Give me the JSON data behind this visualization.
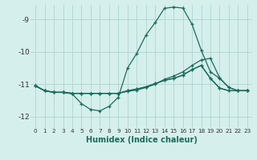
{
  "xlabel": "Humidex (Indice chaleur)",
  "bg_color": "#d5efed",
  "grid_color": "#aed4d0",
  "line_color": "#1a6b5a",
  "xlim": [
    -0.5,
    23.5
  ],
  "ylim": [
    -12.35,
    -8.55
  ],
  "yticks": [
    -12,
    -11,
    -10,
    -9
  ],
  "xticks": [
    0,
    1,
    2,
    3,
    4,
    5,
    6,
    7,
    8,
    9,
    10,
    11,
    12,
    13,
    14,
    15,
    16,
    17,
    18,
    19,
    20,
    21,
    22,
    23
  ],
  "line1_x": [
    0,
    1,
    2,
    3,
    4,
    5,
    6,
    7,
    8,
    9,
    10,
    11,
    12,
    13,
    14,
    15,
    16,
    17,
    18,
    19,
    20,
    21,
    22,
    23
  ],
  "line1_y": [
    -11.05,
    -11.2,
    -11.25,
    -11.25,
    -11.3,
    -11.6,
    -11.78,
    -11.82,
    -11.68,
    -11.4,
    -10.5,
    -10.05,
    -9.48,
    -9.1,
    -8.66,
    -8.62,
    -8.65,
    -9.15,
    -9.95,
    -10.62,
    -10.82,
    -11.1,
    -11.2,
    -11.2
  ],
  "line2_x": [
    0,
    1,
    2,
    3,
    4,
    5,
    6,
    7,
    8,
    9,
    10,
    11,
    12,
    13,
    14,
    15,
    16,
    17,
    18,
    19,
    20,
    21,
    22,
    23
  ],
  "line2_y": [
    -11.05,
    -11.2,
    -11.25,
    -11.25,
    -11.28,
    -11.28,
    -11.28,
    -11.28,
    -11.28,
    -11.28,
    -11.22,
    -11.18,
    -11.1,
    -11.0,
    -10.85,
    -10.75,
    -10.62,
    -10.42,
    -10.25,
    -10.2,
    -10.8,
    -11.1,
    -11.2,
    -11.2
  ],
  "line3_x": [
    0,
    1,
    2,
    3,
    4,
    5,
    6,
    7,
    8,
    9,
    10,
    11,
    12,
    13,
    14,
    15,
    16,
    17,
    18,
    19,
    20,
    21,
    22,
    23
  ],
  "line3_y": [
    -11.05,
    -11.2,
    -11.25,
    -11.25,
    -11.28,
    -11.28,
    -11.28,
    -11.28,
    -11.28,
    -11.28,
    -11.2,
    -11.15,
    -11.08,
    -10.98,
    -10.88,
    -10.82,
    -10.72,
    -10.55,
    -10.42,
    -10.82,
    -11.12,
    -11.2,
    -11.2,
    -11.2
  ],
  "line4_x": [
    0,
    1,
    2,
    3,
    4,
    5,
    6,
    7,
    8,
    9,
    10,
    11,
    12,
    13,
    14,
    15,
    16,
    17,
    18,
    19,
    20,
    21,
    22,
    23
  ],
  "line4_y": [
    -11.05,
    -11.2,
    -11.25,
    -11.25,
    -11.28,
    -11.28,
    -11.28,
    -11.28,
    -11.28,
    -11.28,
    -11.2,
    -11.15,
    -11.08,
    -10.98,
    -10.88,
    -10.82,
    -10.72,
    -10.55,
    -10.42,
    -10.82,
    -11.12,
    -11.2,
    -11.2,
    -11.2
  ]
}
